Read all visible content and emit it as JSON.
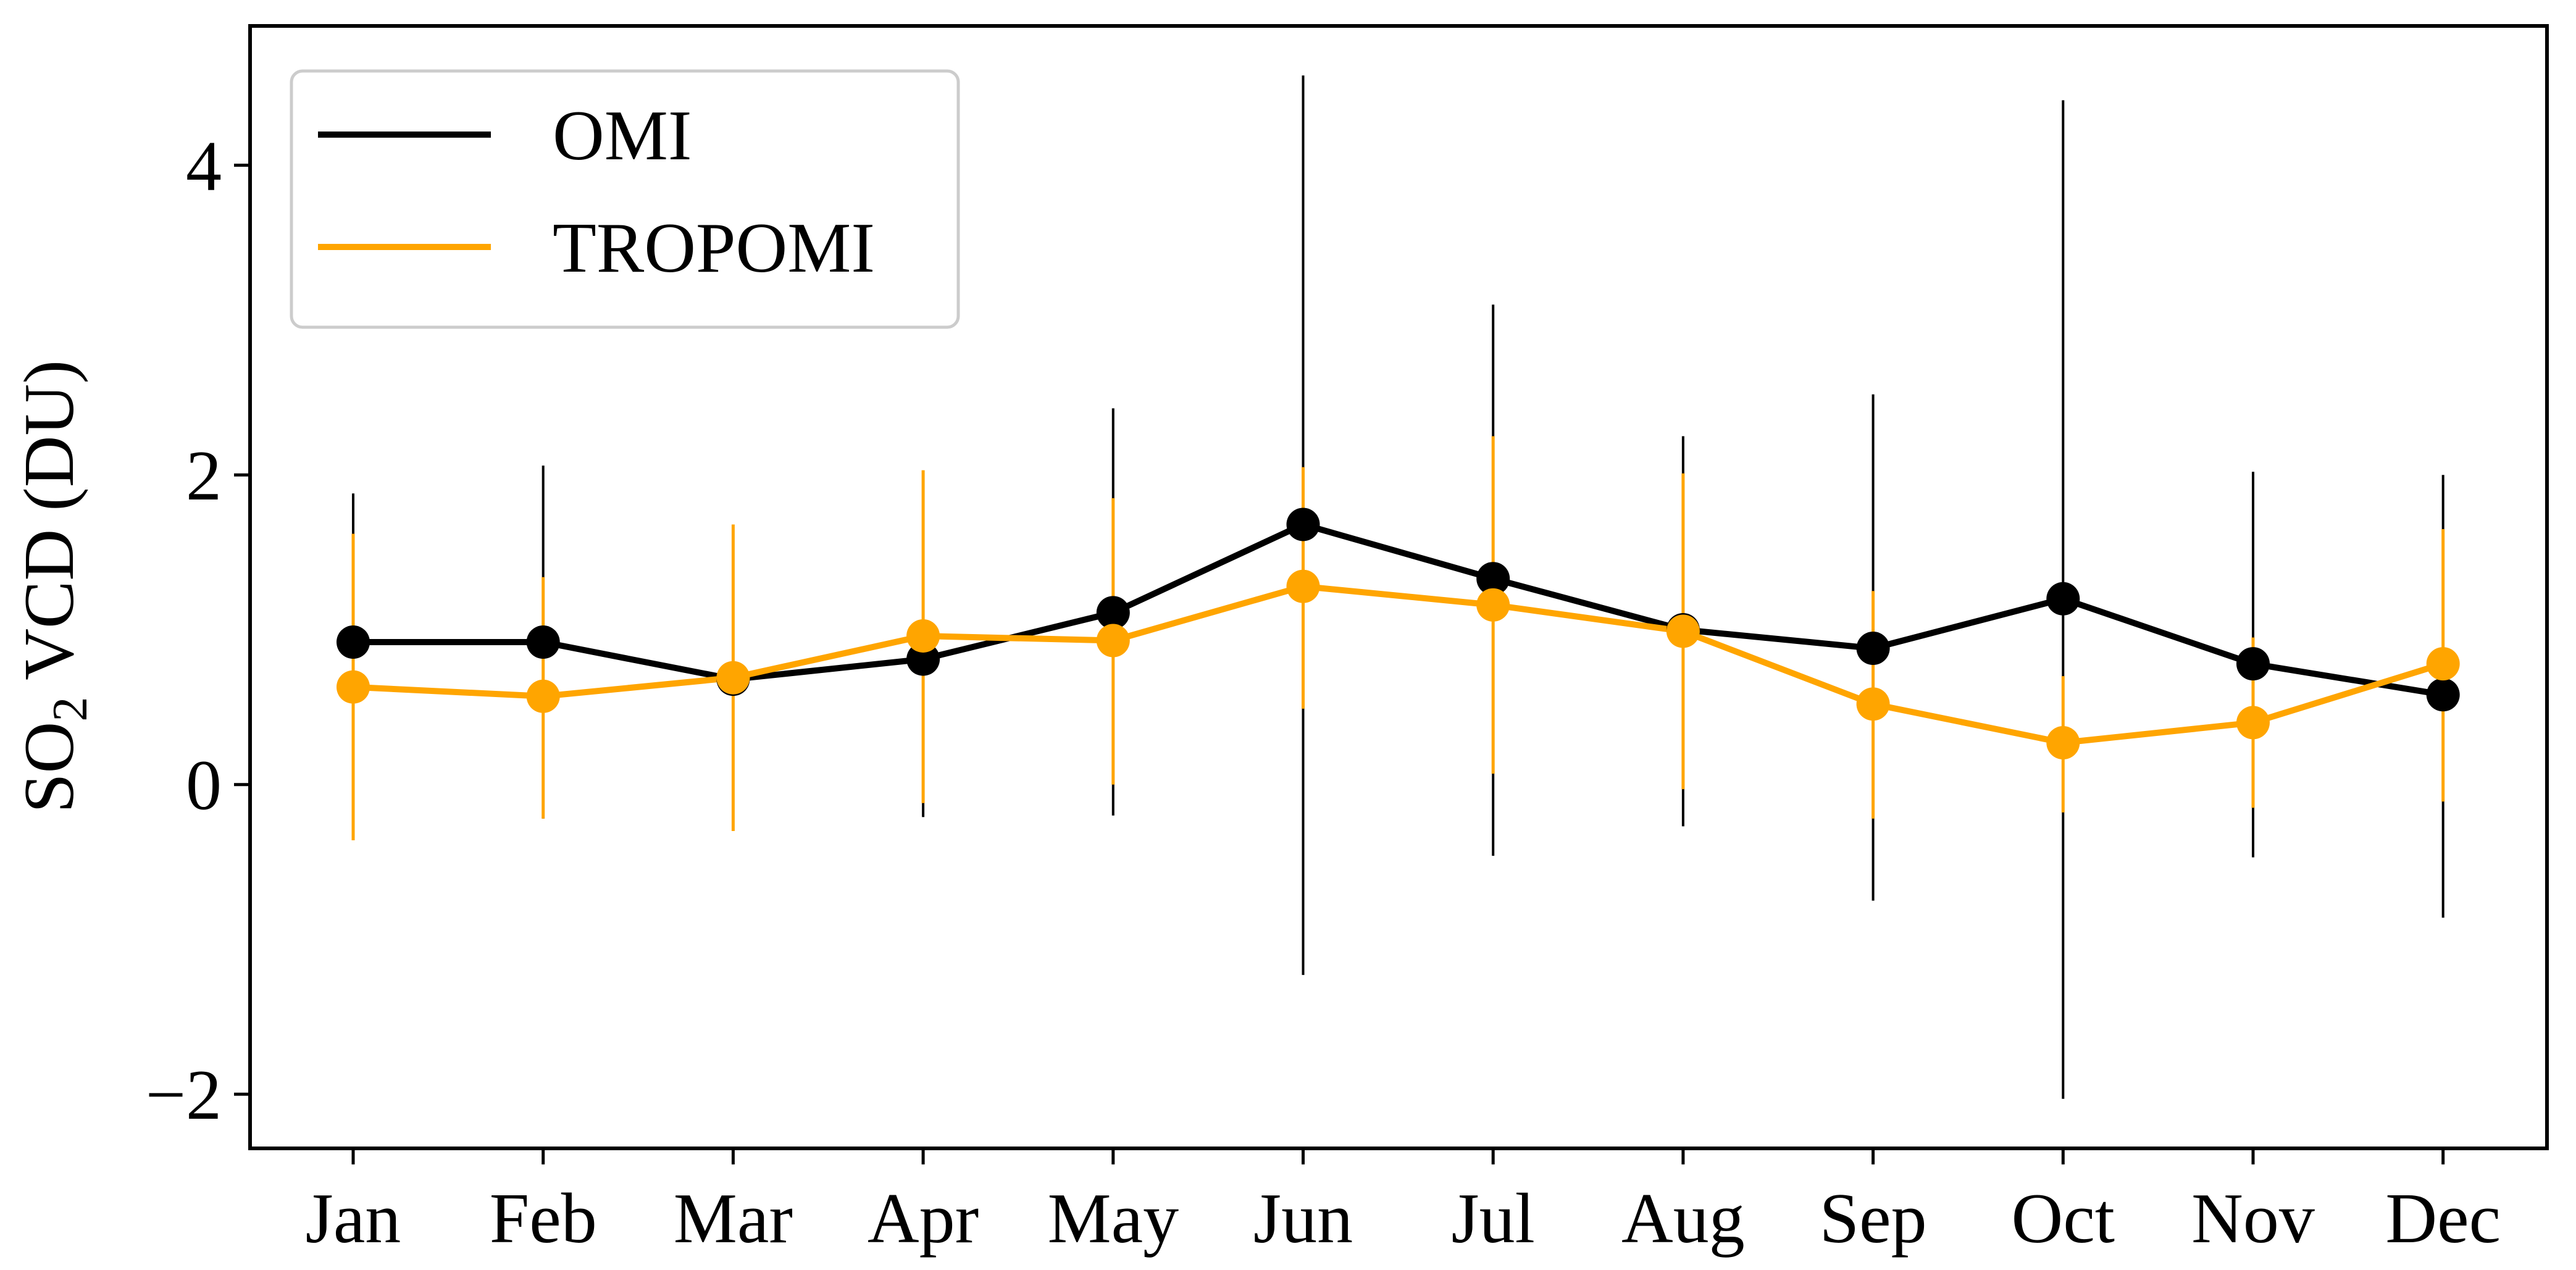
{
  "chart_data": {
    "type": "line",
    "categories": [
      "Jan",
      "Feb",
      "Mar",
      "Apr",
      "May",
      "Jun",
      "Jul",
      "Aug",
      "Sep",
      "Oct",
      "Nov",
      "Dec"
    ],
    "ylabel_main": "SO",
    "ylabel_sub": "2",
    "ylabel_rest": " VCD (DU)",
    "ylim": [
      -2.35,
      4.9
    ],
    "yticks": [
      -2,
      0,
      2,
      4
    ],
    "ytick_labels": [
      "−2",
      "0",
      "2",
      "4"
    ],
    "grid": false,
    "legend_position": "top-left",
    "series": [
      {
        "name": "OMI",
        "color": "#000000",
        "values": [
          0.92,
          0.92,
          0.68,
          0.81,
          1.11,
          1.68,
          1.33,
          1.0,
          0.88,
          1.2,
          0.78,
          0.58
        ],
        "err_low": [
          -0.1,
          -0.22,
          -0.03,
          -0.21,
          -0.2,
          -1.23,
          -0.46,
          -0.27,
          -0.75,
          -2.03,
          -0.47,
          -0.86
        ],
        "err_high": [
          1.88,
          2.06,
          1.38,
          1.82,
          2.43,
          4.58,
          3.1,
          2.25,
          2.52,
          4.42,
          2.02,
          2.0
        ]
      },
      {
        "name": "TROPOMI",
        "color": "#FFA500",
        "values": [
          0.63,
          0.57,
          0.69,
          0.96,
          0.93,
          1.28,
          1.16,
          0.99,
          0.52,
          0.27,
          0.4,
          0.78
        ],
        "err_low": [
          -0.36,
          -0.22,
          -0.3,
          -0.12,
          0.0,
          0.49,
          0.07,
          -0.03,
          -0.22,
          -0.18,
          -0.15,
          -0.11
        ],
        "err_high": [
          1.62,
          1.34,
          1.68,
          2.03,
          1.85,
          2.05,
          2.25,
          2.01,
          1.25,
          0.7,
          0.95,
          1.65
        ]
      }
    ]
  }
}
